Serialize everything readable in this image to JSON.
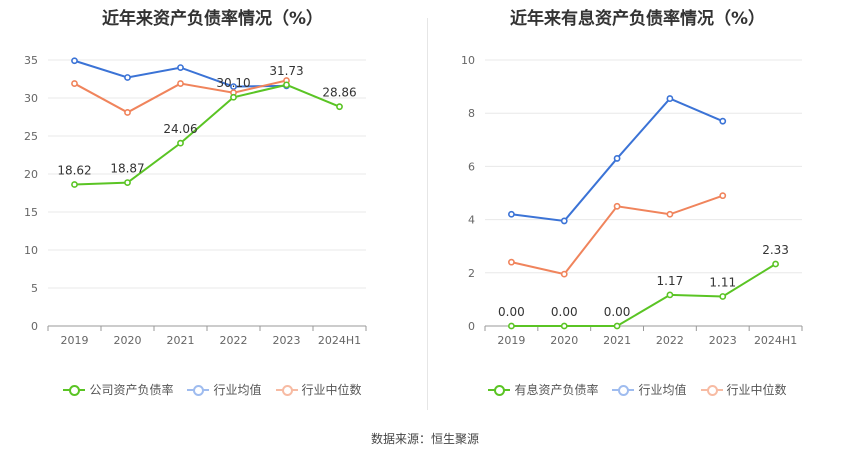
{
  "source_text": "数据来源：恒生聚源",
  "colors": {
    "company": "#5ac424",
    "avg": "#3b73d6",
    "median": "#f0845c",
    "grid": "#e8e8e8",
    "axis": "#999999"
  },
  "chart_data": [
    {
      "type": "line",
      "title": "近年来资产负债率情况（%）",
      "categories": [
        "2019",
        "2020",
        "2021",
        "2022",
        "2023",
        "2024H1"
      ],
      "ylim": [
        0,
        35
      ],
      "yticks": [
        "0",
        "5",
        "10",
        "15",
        "20",
        "25",
        "30",
        "35"
      ],
      "grid": true,
      "legend_position": "bottom",
      "series": [
        {
          "name": "公司资产负债率",
          "key": "company",
          "values": [
            18.62,
            18.87,
            24.06,
            30.1,
            31.73,
            28.86
          ],
          "labels": [
            "18.62",
            "18.87",
            "24.06",
            "30.10",
            "31.73",
            "28.86"
          ]
        },
        {
          "name": "行业均值",
          "key": "avg",
          "values": [
            34.9,
            32.7,
            34.0,
            31.5,
            31.6,
            null
          ]
        },
        {
          "name": "行业中位数",
          "key": "median",
          "values": [
            31.9,
            28.1,
            31.9,
            30.7,
            32.3,
            null
          ]
        }
      ]
    },
    {
      "type": "line",
      "title": "近年来有息资产负债率情况（%）",
      "categories": [
        "2019",
        "2020",
        "2021",
        "2022",
        "2023",
        "2024H1"
      ],
      "ylim": [
        0,
        10
      ],
      "yticks": [
        "0",
        "2",
        "4",
        "6",
        "8",
        "10"
      ],
      "grid": true,
      "legend_position": "bottom",
      "series": [
        {
          "name": "有息资产负债率",
          "key": "company",
          "values": [
            0.0,
            0.0,
            0.0,
            1.17,
            1.11,
            2.33
          ],
          "labels": [
            "0.00",
            "0.00",
            "0.00",
            "1.17",
            "1.11",
            "2.33"
          ]
        },
        {
          "name": "行业均值",
          "key": "avg",
          "values": [
            4.2,
            3.95,
            6.3,
            8.55,
            7.7,
            null
          ]
        },
        {
          "name": "行业中位数",
          "key": "median",
          "values": [
            2.4,
            1.95,
            4.5,
            4.2,
            4.9,
            null
          ]
        }
      ]
    }
  ]
}
